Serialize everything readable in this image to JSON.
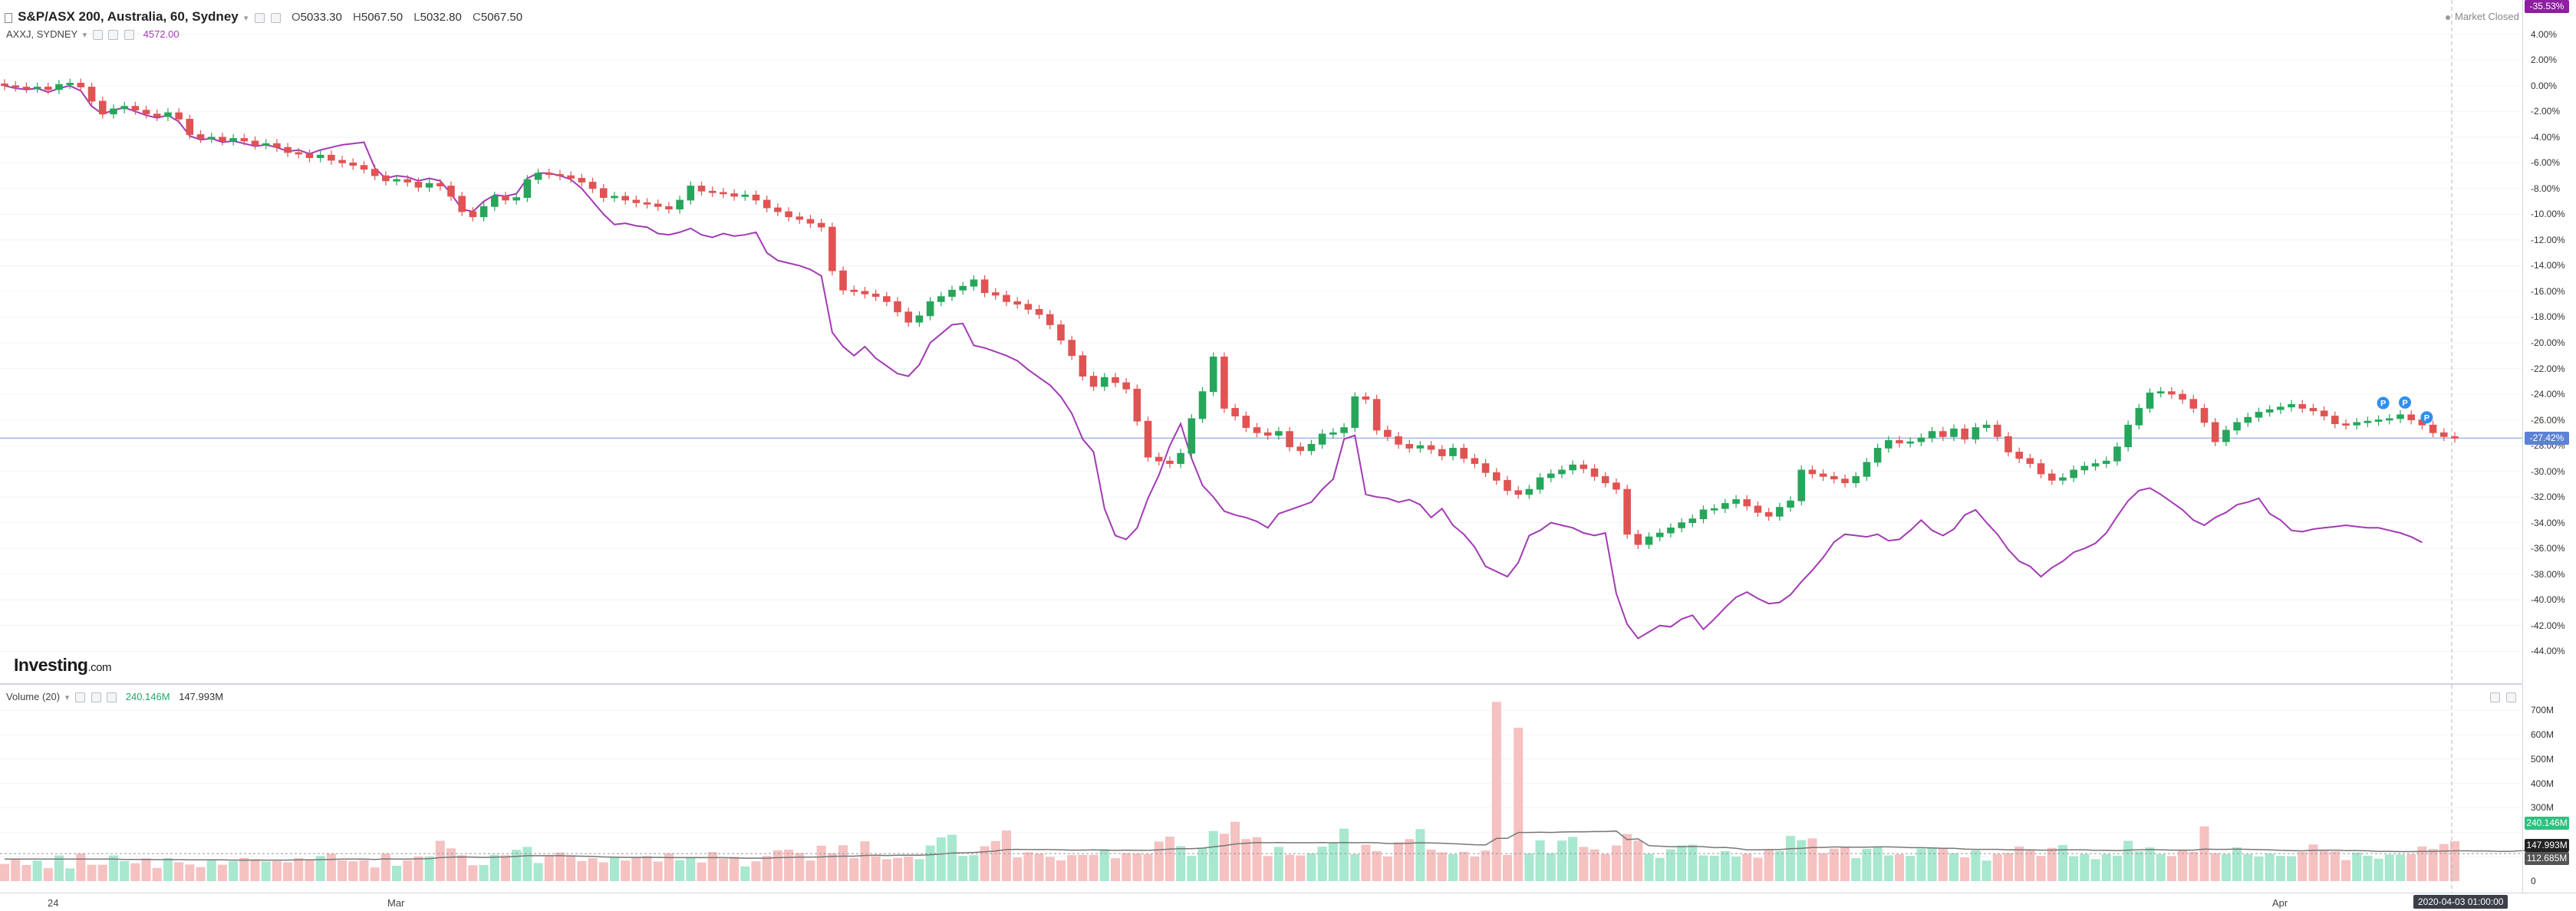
{
  "legend": {
    "symbol": "S&P/ASX 200, Australia, 60, Sydney",
    "open_label": "O",
    "open": "5033.30",
    "high_label": "H",
    "high": "5067.50",
    "low_label": "L",
    "low": "5032.80",
    "close_label": "C",
    "close": "5067.50",
    "compare_symbol": "AXXJ, SYDNEY",
    "compare_value": "4572.00"
  },
  "market_status": "Market Closed",
  "logo": {
    "main": "Investing",
    "suffix": ".com"
  },
  "price_axis": {
    "ticks": [
      "4.00%",
      "2.00%",
      "0.00%",
      "-2.00%",
      "-4.00%",
      "-6.00%",
      "-8.00%",
      "-10.00%",
      "-12.00%",
      "-14.00%",
      "-16.00%",
      "-18.00%",
      "-20.00%",
      "-22.00%",
      "-24.00%",
      "-26.00%",
      "-28.00%",
      "-30.00%",
      "-32.00%",
      "-34.00%",
      "-36.00%",
      "-38.00%",
      "-40.00%",
      "-42.00%",
      "-44.00%"
    ],
    "current_tag": "-27.42%",
    "compare_tag": "-35.53%"
  },
  "volume_legend": {
    "label": "Volume (20)",
    "value1": "240.146M",
    "value2": "147.993M"
  },
  "volume_axis": {
    "ticks": [
      "700M",
      "600M",
      "500M",
      "400M",
      "300M",
      "0"
    ],
    "tag1": "240.146M",
    "tag2": "147.993M",
    "tag3": "112.685M"
  },
  "time_axis": {
    "labels": [
      "24",
      "Mar",
      "Apr"
    ],
    "cursor_time": "2020-04-03 01:00:00"
  },
  "colors": {
    "up": "#26a65b",
    "down": "#e05353",
    "up_vol": "#a7e8cf",
    "down_vol": "#f6c1c1",
    "compare_line": "#a33ab5",
    "crosshair": "#9fb7e3",
    "ma": "#777777"
  },
  "chart_data": {
    "type": "candlestick",
    "y_unit": "%",
    "y_range": [
      -45,
      5
    ],
    "volume_range": [
      0,
      760
    ],
    "volume_unit": "M",
    "crosshair_y": -27.42,
    "pattern_markers": [
      "P",
      "P",
      "P"
    ],
    "series": [
      {
        "name": "S&P/ASX 200",
        "kind": "candles",
        "values": [
          0.0,
          -0.1,
          -0.2,
          -0.1,
          -0.3,
          0.1,
          0.2,
          -0.1,
          -1.2,
          -2.2,
          -1.8,
          -1.6,
          -1.9,
          -2.2,
          -2.4,
          -2.1,
          -2.6,
          -3.8,
          -4.1,
          -4.0,
          -4.3,
          -4.1,
          -4.3,
          -4.6,
          -4.5,
          -4.8,
          -5.2,
          -5.3,
          -5.6,
          -5.4,
          -5.8,
          -6.0,
          -6.2,
          -6.5,
          -7.0,
          -7.4,
          -7.3,
          -7.5,
          -7.9,
          -7.6,
          -7.8,
          -8.6,
          -9.8,
          -10.2,
          -9.4,
          -8.6,
          -8.9,
          -8.7,
          -7.3,
          -6.8,
          -6.9,
          -7.0,
          -7.2,
          -7.5,
          -8.0,
          -8.7,
          -8.6,
          -8.9,
          -9.1,
          -9.2,
          -9.4,
          -9.6,
          -8.9,
          -7.8,
          -8.2,
          -8.3,
          -8.4,
          -8.6,
          -8.5,
          -8.9,
          -9.5,
          -9.8,
          -10.2,
          -10.4,
          -10.7,
          -11.0,
          -14.4,
          -15.9,
          -16.0,
          -16.2,
          -16.4,
          -16.8,
          -17.6,
          -18.4,
          -17.9,
          -16.8,
          -16.4,
          -15.9,
          -15.6,
          -15.1,
          -16.1,
          -16.3,
          -16.8,
          -17.0,
          -17.4,
          -17.8,
          -18.6,
          -19.8,
          -21.0,
          -22.6,
          -23.4,
          -22.7,
          -23.1,
          -23.6,
          -26.1,
          -28.9,
          -29.2,
          -29.4,
          -28.6,
          -25.9,
          -23.8,
          -21.1,
          -25.1,
          -25.7,
          -26.6,
          -27.0,
          -27.2,
          -26.9,
          -28.1,
          -28.4,
          -27.9,
          -27.1,
          -27.0,
          -26.6,
          -24.2,
          -24.4,
          -26.8,
          -27.3,
          -27.9,
          -28.2,
          -28.0,
          -28.3,
          -28.8,
          -28.2,
          -29.0,
          -29.4,
          -30.1,
          -30.7,
          -31.5,
          -31.8,
          -31.4,
          -30.5,
          -30.2,
          -29.9,
          -29.5,
          -29.8,
          -30.4,
          -30.9,
          -31.4,
          -34.9,
          -35.7,
          -35.1,
          -34.8,
          -34.4,
          -34.0,
          -33.7,
          -33.0,
          -32.9,
          -32.5,
          -32.2,
          -32.7,
          -33.2,
          -33.5,
          -32.8,
          -32.3,
          -29.9,
          -30.2,
          -30.4,
          -30.6,
          -30.9,
          -30.4,
          -29.3,
          -28.2,
          -27.6,
          -27.8,
          -27.7,
          -27.4,
          -26.9,
          -27.3,
          -26.7,
          -27.5,
          -26.6,
          -26.4,
          -27.3,
          -28.5,
          -29.0,
          -29.4,
          -30.2,
          -30.7,
          -30.5,
          -29.9,
          -29.6,
          -29.4,
          -29.2,
          -28.1,
          -26.4,
          -25.1,
          -23.9,
          -23.8,
          -24.0,
          -24.4,
          -25.1,
          -26.2,
          -27.7,
          -26.8,
          -26.2,
          -25.8,
          -25.4,
          -25.2,
          -25.0,
          -24.8,
          -25.1,
          -25.3,
          -25.7,
          -26.3,
          -26.4,
          -26.2,
          -26.1,
          -26.0,
          -25.9,
          -25.6,
          -26.0,
          -26.4,
          -27.0,
          -27.3,
          -27.42
        ]
      },
      {
        "name": "AXXJ, SYDNEY",
        "kind": "line",
        "values": [
          0.0,
          -0.2,
          -0.3,
          -0.2,
          -0.5,
          -0.2,
          0.0,
          -0.4,
          -1.6,
          -2.2,
          -1.9,
          -1.7,
          -2.0,
          -2.3,
          -2.5,
          -2.3,
          -2.8,
          -3.9,
          -4.2,
          -4.1,
          -4.4,
          -4.3,
          -4.5,
          -4.7,
          -4.6,
          -4.8,
          -5.1,
          -5.0,
          -5.3,
          -5.0,
          -4.8,
          -4.6,
          -4.5,
          -4.4,
          -6.4,
          -7.2,
          -7.0,
          -7.1,
          -7.4,
          -7.2,
          -7.4,
          -8.4,
          -9.6,
          -9.8,
          -9.0,
          -8.5,
          -8.6,
          -8.4,
          -7.2,
          -6.8,
          -6.8,
          -7.0,
          -7.3,
          -8.0,
          -9.0,
          -10.0,
          -10.8,
          -10.7,
          -10.9,
          -11.0,
          -11.5,
          -11.6,
          -11.4,
          -11.1,
          -11.6,
          -11.8,
          -11.5,
          -11.7,
          -11.6,
          -11.4,
          -13.0,
          -13.6,
          -13.8,
          -14.0,
          -14.3,
          -14.8,
          -19.2,
          -20.3,
          -21.0,
          -20.3,
          -21.2,
          -21.8,
          -22.4,
          -22.6,
          -21.7,
          -20.0,
          -19.3,
          -18.6,
          -18.5,
          -20.2,
          -20.4,
          -20.7,
          -21.0,
          -21.4,
          -22.1,
          -22.7,
          -23.3,
          -24.2,
          -25.5,
          -27.5,
          -28.5,
          -32.9,
          -35.0,
          -35.3,
          -34.4,
          -32.1,
          -30.3,
          -28.0,
          -26.3,
          -29.0,
          -31.1,
          -32.0,
          -33.1,
          -33.4,
          -33.6,
          -33.9,
          -34.4,
          -33.3,
          -33.0,
          -32.7,
          -32.4,
          -31.4,
          -30.6,
          -27.5,
          -27.2,
          -31.8,
          -32.0,
          -32.1,
          -32.4,
          -32.2,
          -32.6,
          -33.6,
          -32.9,
          -34.2,
          -34.9,
          -35.9,
          -37.4,
          -37.8,
          -38.2,
          -37.1,
          -35.0,
          -34.6,
          -34.0,
          -34.2,
          -34.4,
          -34.8,
          -35.0,
          -34.8,
          -39.5,
          -41.9,
          -43.0,
          -42.5,
          -42.0,
          -42.1,
          -41.5,
          -41.2,
          -42.3,
          -41.5,
          -40.6,
          -39.8,
          -39.4,
          -39.9,
          -40.3,
          -40.2,
          -39.6,
          -38.6,
          -37.7,
          -36.7,
          -35.5,
          -34.9,
          -35.0,
          -35.1,
          -34.9,
          -35.4,
          -35.3,
          -34.6,
          -33.8,
          -34.6,
          -35.0,
          -34.5,
          -33.4,
          -33.0,
          -34.0,
          -34.9,
          -36.1,
          -37.0,
          -37.4,
          -38.2,
          -37.5,
          -37.0,
          -36.3,
          -36.0,
          -35.6,
          -34.8,
          -33.5,
          -32.3,
          -31.5,
          -31.3,
          -31.8,
          -32.4,
          -33.0,
          -33.8,
          -34.2,
          -33.6,
          -33.2,
          -32.6,
          -32.4,
          -32.1,
          -33.3,
          -33.8,
          -34.6,
          -34.7,
          -34.5,
          -34.4,
          -34.3,
          -34.2,
          -34.3,
          -34.4,
          -34.4,
          -34.6,
          -34.8,
          -35.1,
          -35.53
        ]
      },
      {
        "name": "Volume",
        "kind": "volume",
        "values": [
          70,
          92,
          66,
          84,
          53,
          105,
          52,
          113,
          67,
          67,
          105,
          82,
          73,
          93,
          54,
          94,
          77,
          68,
          57,
          85,
          67,
          81,
          95,
          90,
          80,
          82,
          77,
          94,
          87,
          103,
          112,
          85,
          81,
          86,
          56,
          113,
          63,
          85,
          101,
          101,
          165,
          134,
          106,
          65,
          66,
          108,
          106,
          128,
          140,
          74,
          104,
          117,
          106,
          82,
          94,
          77,
          99,
          84,
          99,
          103,
          80,
          114,
          86,
          97,
          76,
          119,
          92,
          99,
          60,
          81,
          103,
          126,
          129,
          115,
          84,
          145,
          114,
          147,
          94,
          163,
          102,
          90,
          95,
          100,
          90,
          146,
          179,
          190,
          103,
          106,
          143,
          164,
          207,
          97,
          118,
          113,
          99,
          85,
          106,
          107,
          107,
          131,
          94,
          115,
          113,
          111,
          162,
          182,
          143,
          103,
          136,
          205,
          194,
          243,
          172,
          180,
          103,
          140,
          108,
          105,
          114,
          141,
          158,
          215,
          110,
          149,
          123,
          101,
          159,
          172,
          213,
          129,
          118,
          110,
          120,
          101,
          125,
          734,
          107,
          628,
          113,
          167,
          114,
          166,
          181,
          140,
          130,
          111,
          146,
          193,
          166,
          112,
          95,
          130,
          146,
          149,
          105,
          104,
          123,
          101,
          112,
          96,
          128,
          123,
          185,
          168,
          175,
          114,
          133,
          140,
          94,
          132,
          140,
          105,
          110,
          103,
          133,
          135,
          136,
          114,
          97,
          126,
          84,
          111,
          115,
          142,
          126,
          103,
          136,
          148,
          102,
          111,
          90,
          110,
          104,
          165,
          122,
          138,
          110,
          103,
          127,
          120,
          224,
          114,
          110,
          138,
          110,
          101,
          112,
          103,
          102,
          119,
          150,
          126,
          122,
          86,
          117,
          104,
          92,
          109,
          109,
          110,
          142,
          132,
          152,
          163,
          120,
          114,
          155,
          87,
          160,
          174,
          240
        ]
      },
      {
        "name": "Volume MA",
        "kind": "line",
        "values": [
          90,
          90,
          90,
          90,
          90,
          90,
          90,
          90,
          90,
          90,
          90,
          89,
          89,
          89,
          88,
          88,
          88,
          87,
          87,
          87,
          87,
          86,
          86,
          86,
          86,
          86,
          86,
          87,
          87,
          88,
          89,
          90,
          90,
          90,
          89,
          91,
          90,
          90,
          91,
          92,
          96,
          98,
          99,
          98,
          97,
          98,
          99,
          101,
          104,
          104,
          104,
          104,
          103,
          102,
          101,
          99,
          98,
          97,
          97,
          97,
          97,
          96,
          96,
          96,
          96,
          96,
          96,
          95,
          94,
          94,
          94,
          96,
          97,
          98,
          98,
          99,
          101,
          102,
          102,
          105,
          106,
          105,
          106,
          106,
          106,
          108,
          111,
          115,
          116,
          117,
          120,
          123,
          129,
          130,
          129,
          129,
          129,
          128,
          127,
          127,
          128,
          127,
          126,
          127,
          126,
          126,
          128,
          131,
          133,
          133,
          135,
          140,
          145,
          152,
          155,
          158,
          157,
          158,
          157,
          157,
          157,
          158,
          157,
          158,
          157,
          158,
          157,
          154,
          154,
          155,
          157,
          156,
          155,
          153,
          151,
          149,
          148,
          175,
          175,
          199,
          199,
          200,
          199,
          201,
          202,
          202,
          203,
          203,
          205,
          170,
          173,
          145,
          143,
          141,
          141,
          142,
          141,
          137,
          138,
          134,
          128,
          128,
          129,
          129,
          133,
          134,
          138,
          138,
          140,
          139,
          139,
          139,
          140,
          140,
          139,
          137,
          137,
          136,
          134,
          134,
          131,
          130,
          130,
          130,
          128,
          128,
          128,
          127,
          127,
          128,
          128,
          128,
          126,
          126,
          125,
          127,
          128,
          129,
          128,
          127,
          127,
          127,
          131,
          130,
          130,
          131,
          130,
          129,
          128,
          126,
          125,
          124,
          126,
          127,
          127,
          125,
          125,
          124,
          122,
          122,
          121,
          121,
          122,
          122,
          123,
          124,
          124,
          123,
          123,
          122,
          122,
          124,
          127
        ]
      }
    ]
  }
}
